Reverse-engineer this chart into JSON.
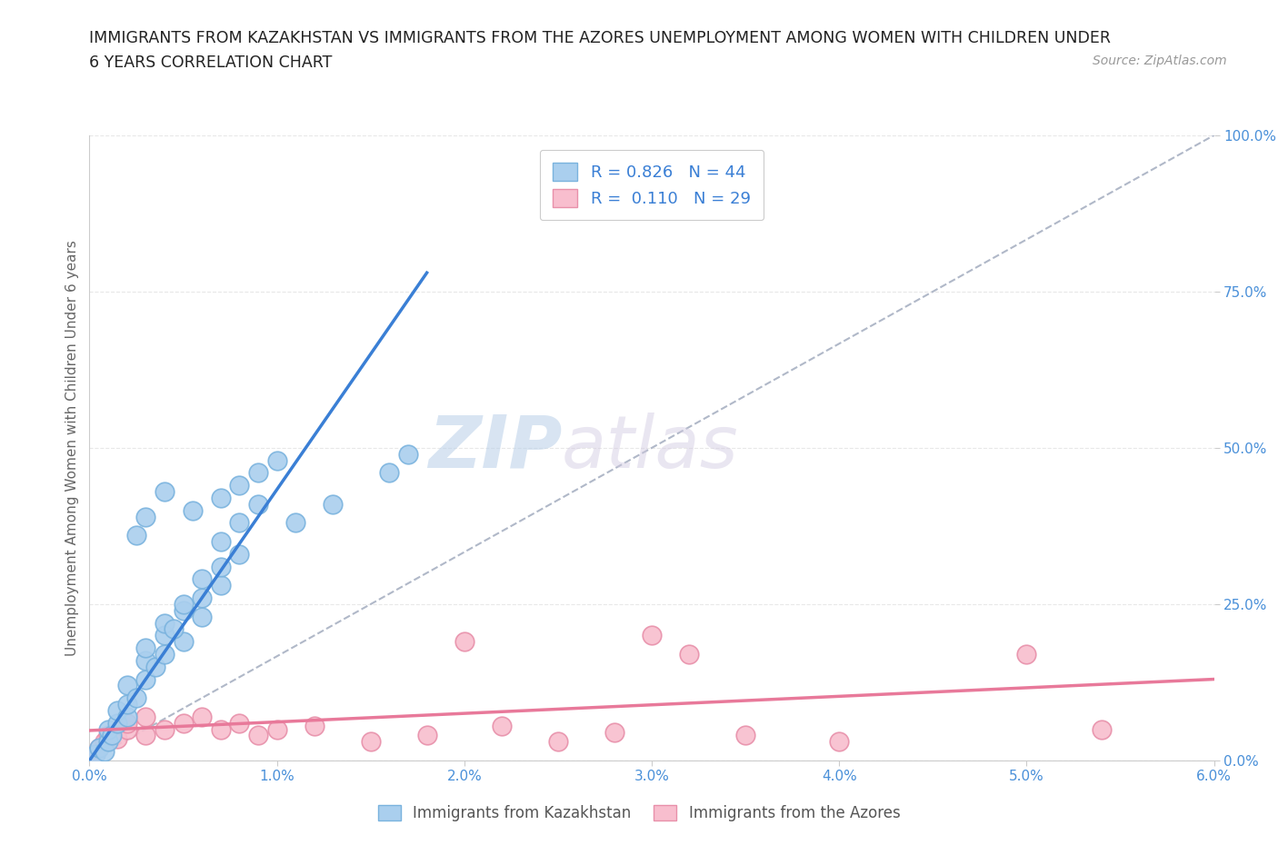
{
  "title_line1": "IMMIGRANTS FROM KAZAKHSTAN VS IMMIGRANTS FROM THE AZORES UNEMPLOYMENT AMONG WOMEN WITH CHILDREN UNDER",
  "title_line2": "6 YEARS CORRELATION CHART",
  "source_text": "Source: ZipAtlas.com",
  "ylabel": "Unemployment Among Women with Children Under 6 years",
  "xlim": [
    0,
    0.06
  ],
  "ylim": [
    0,
    1.0
  ],
  "xticks": [
    0.0,
    0.01,
    0.02,
    0.03,
    0.04,
    0.05,
    0.06
  ],
  "xticklabels": [
    "0.0%",
    "1.0%",
    "2.0%",
    "3.0%",
    "4.0%",
    "5.0%",
    "6.0%"
  ],
  "yticks": [
    0.0,
    0.25,
    0.5,
    0.75,
    1.0
  ],
  "yticklabels": [
    "0.0%",
    "25.0%",
    "50.0%",
    "75.0%",
    "100.0%"
  ],
  "kaz_color": "#aacfee",
  "kaz_color_edge": "#7ab3de",
  "azores_color": "#f8bece",
  "azores_color_edge": "#e890aa",
  "kaz_line_color": "#3a7fd5",
  "azores_line_color": "#e8799a",
  "ref_line_color": "#b0b8c8",
  "R_kaz": 0.826,
  "N_kaz": 44,
  "R_azores": 0.11,
  "N_azores": 29,
  "legend_label_kaz": "Immigrants from Kazakhstan",
  "legend_label_azores": "Immigrants from the Azores",
  "watermark_zip": "ZIP",
  "watermark_atlas": "atlas",
  "background_color": "#ffffff",
  "grid_color": "#e8e8e8",
  "tick_label_color": "#4a90d9",
  "axis_label_color": "#666666",
  "kaz_line_x": [
    0.0,
    0.018
  ],
  "kaz_line_y": [
    0.0,
    0.78
  ],
  "azores_line_x": [
    0.0,
    0.06
  ],
  "azores_line_y": [
    0.048,
    0.13
  ],
  "ref_line_x": [
    0.0,
    0.06
  ],
  "ref_line_y": [
    0.0,
    1.0
  ],
  "kaz_x": [
    0.0003,
    0.0005,
    0.0008,
    0.001,
    0.001,
    0.0012,
    0.0015,
    0.0015,
    0.002,
    0.002,
    0.002,
    0.0025,
    0.003,
    0.003,
    0.003,
    0.004,
    0.004,
    0.005,
    0.005,
    0.006,
    0.006,
    0.007,
    0.007,
    0.008,
    0.0035,
    0.004,
    0.0045,
    0.005,
    0.006,
    0.007,
    0.008,
    0.009,
    0.0025,
    0.003,
    0.004,
    0.0055,
    0.007,
    0.008,
    0.009,
    0.01,
    0.011,
    0.013,
    0.016,
    0.017
  ],
  "kaz_y": [
    0.01,
    0.02,
    0.015,
    0.03,
    0.05,
    0.04,
    0.06,
    0.08,
    0.07,
    0.09,
    0.12,
    0.1,
    0.13,
    0.16,
    0.18,
    0.2,
    0.22,
    0.24,
    0.19,
    0.26,
    0.23,
    0.28,
    0.31,
    0.33,
    0.15,
    0.17,
    0.21,
    0.25,
    0.29,
    0.35,
    0.38,
    0.41,
    0.36,
    0.39,
    0.43,
    0.4,
    0.42,
    0.44,
    0.46,
    0.48,
    0.38,
    0.41,
    0.46,
    0.49
  ],
  "azores_x": [
    0.0003,
    0.0005,
    0.0008,
    0.001,
    0.0015,
    0.002,
    0.002,
    0.003,
    0.003,
    0.004,
    0.005,
    0.006,
    0.007,
    0.008,
    0.009,
    0.01,
    0.012,
    0.015,
    0.018,
    0.02,
    0.022,
    0.025,
    0.028,
    0.03,
    0.032,
    0.035,
    0.04,
    0.05,
    0.054
  ],
  "azores_y": [
    0.01,
    0.02,
    0.03,
    0.04,
    0.035,
    0.05,
    0.06,
    0.04,
    0.07,
    0.05,
    0.06,
    0.07,
    0.05,
    0.06,
    0.04,
    0.05,
    0.055,
    0.03,
    0.04,
    0.19,
    0.055,
    0.03,
    0.045,
    0.2,
    0.17,
    0.04,
    0.03,
    0.17,
    0.05
  ]
}
